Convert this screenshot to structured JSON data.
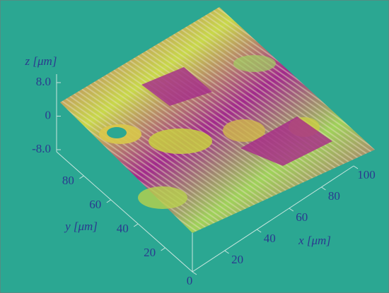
{
  "chart_data": {
    "type": "surface",
    "xlabel": "x [μm]",
    "ylabel": "y [μm]",
    "zlabel": "z [μm]",
    "xlim": [
      0,
      100
    ],
    "xticks": [
      0,
      20,
      40,
      60,
      80,
      100
    ],
    "ylim": [
      0,
      100
    ],
    "yticks": [
      20,
      40,
      60,
      80
    ],
    "zlim": [
      -8,
      8
    ],
    "zticks": [
      {
        "value": 8,
        "label": "8.0"
      },
      0,
      {
        "value": -8,
        "label": "-8.0"
      }
    ]
  }
}
